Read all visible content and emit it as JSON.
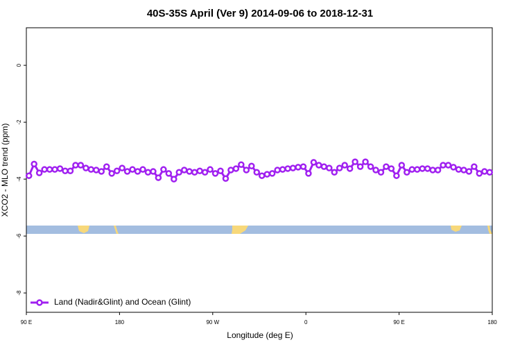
{
  "chart_data": {
    "type": "line",
    "title": "40S-35S April (Ver 9)   2014-09-06 to 2018-12-31",
    "xlabel": "Longitude (deg E)",
    "ylabel": "XCO2 - MLO trend (ppm)",
    "xlim": [
      90,
      540
    ],
    "ylim": [
      -8.68,
      1.32
    ],
    "xticks": [
      {
        "value": 90,
        "label": "90 E"
      },
      180,
      {
        "value": 270,
        "label": "90 W"
      },
      {
        "value": 360,
        "label": "0"
      },
      {
        "value": 450,
        "label": "90 E"
      },
      {
        "value": 540,
        "label": "180"
      }
    ],
    "yticks": [
      0,
      -2,
      -4,
      -6,
      -8
    ],
    "legend": "bottom-left",
    "x": [
      92.5,
      97.5,
      102.5,
      107.5,
      112.5,
      117.5,
      122.5,
      127.5,
      132.5,
      137.5,
      142.5,
      147.5,
      152.5,
      157.5,
      162.5,
      167.5,
      172.5,
      177.5,
      182.5,
      187.5,
      192.5,
      197.5,
      202.5,
      207.5,
      212.5,
      217.5,
      222.5,
      227.5,
      232.5,
      237.5,
      242.5,
      247.5,
      252.5,
      257.5,
      262.5,
      267.5,
      272.5,
      277.5,
      282.5,
      287.5,
      292.5,
      297.5,
      302.5,
      307.5,
      312.5,
      317.5,
      322.5,
      327.5,
      332.5,
      337.5,
      342.5,
      347.5,
      352.5,
      357.5,
      362.5,
      367.5,
      372.5,
      377.5,
      382.5,
      387.5,
      392.5,
      397.5,
      402.5,
      407.5,
      412.5,
      417.5,
      422.5,
      427.5,
      432.5,
      437.5,
      442.5,
      447.5,
      452.5,
      457.5,
      462.5,
      467.5,
      472.5,
      477.5,
      482.5,
      487.5,
      492.5,
      497.5,
      502.5,
      507.5,
      512.5,
      517.5,
      522.5,
      527.5,
      532.5,
      537.5
    ],
    "series": [
      {
        "name": "Land (Nadir&Glint) and Ocean (Glint)",
        "color": "#a020f0",
        "values": [
          -3.88,
          -3.47,
          -3.78,
          -3.66,
          -3.66,
          -3.66,
          -3.63,
          -3.71,
          -3.71,
          -3.51,
          -3.51,
          -3.61,
          -3.66,
          -3.68,
          -3.73,
          -3.56,
          -3.8,
          -3.71,
          -3.61,
          -3.73,
          -3.66,
          -3.73,
          -3.66,
          -3.76,
          -3.73,
          -3.95,
          -3.66,
          -3.8,
          -4.0,
          -3.76,
          -3.68,
          -3.73,
          -3.76,
          -3.71,
          -3.76,
          -3.66,
          -3.8,
          -3.71,
          -3.98,
          -3.68,
          -3.63,
          -3.49,
          -3.68,
          -3.54,
          -3.76,
          -3.88,
          -3.83,
          -3.8,
          -3.68,
          -3.66,
          -3.63,
          -3.61,
          -3.58,
          -3.56,
          -3.8,
          -3.41,
          -3.51,
          -3.56,
          -3.61,
          -3.76,
          -3.61,
          -3.51,
          -3.63,
          -3.39,
          -3.56,
          -3.39,
          -3.56,
          -3.68,
          -3.76,
          -3.56,
          -3.63,
          -3.88,
          -3.51,
          -3.76,
          -3.66,
          -3.66,
          -3.63,
          -3.63,
          -3.68,
          -3.68,
          -3.51,
          -3.51,
          -3.58,
          -3.66,
          -3.68,
          -3.73,
          -3.56,
          -3.8,
          -3.73,
          -3.76
        ]
      }
    ]
  }
}
